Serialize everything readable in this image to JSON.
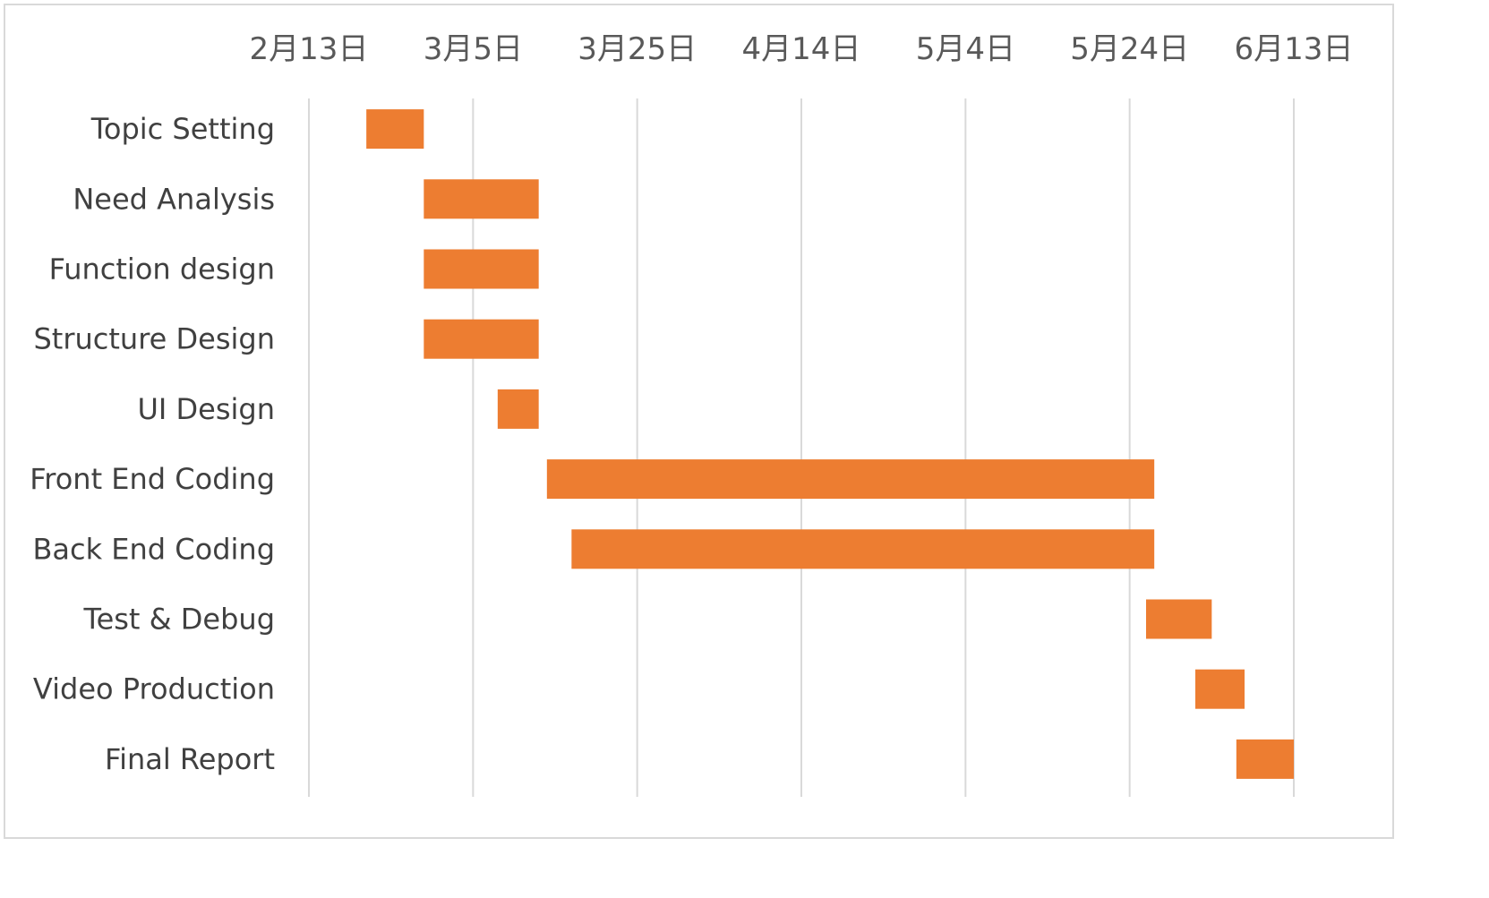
{
  "chart_data": {
    "type": "gantt",
    "title": "",
    "xlabel": "",
    "ylabel": "",
    "year": 2021,
    "x_ticks": [
      {
        "date": "2021-02-13",
        "label": "2月13日"
      },
      {
        "date": "2021-03-05",
        "label": "3月5日"
      },
      {
        "date": "2021-03-25",
        "label": "3月25日"
      },
      {
        "date": "2021-04-14",
        "label": "4月14日"
      },
      {
        "date": "2021-05-04",
        "label": "5月4日"
      },
      {
        "date": "2021-05-24",
        "label": "5月24日"
      },
      {
        "date": "2021-06-13",
        "label": "6月13日"
      }
    ],
    "xlim": [
      "2021-02-13",
      "2021-06-13"
    ],
    "grid": "vertical",
    "tick_position": "top",
    "legend": "none",
    "bar_color": "#ED7D31",
    "tasks": [
      {
        "name": "Topic Setting",
        "start": "2021-02-20",
        "end": "2021-02-27"
      },
      {
        "name": "Need Analysis",
        "start": "2021-02-27",
        "end": "2021-03-13"
      },
      {
        "name": "Function design",
        "start": "2021-02-27",
        "end": "2021-03-13"
      },
      {
        "name": "Structure Design",
        "start": "2021-02-27",
        "end": "2021-03-13"
      },
      {
        "name": "UI Design",
        "start": "2021-03-08",
        "end": "2021-03-13"
      },
      {
        "name": "Front End Coding",
        "start": "2021-03-14",
        "end": "2021-05-27"
      },
      {
        "name": "Back End Coding",
        "start": "2021-03-17",
        "end": "2021-05-27"
      },
      {
        "name": "Test & Debug",
        "start": "2021-05-26",
        "end": "2021-06-03"
      },
      {
        "name": "Video Production",
        "start": "2021-06-01",
        "end": "2021-06-07"
      },
      {
        "name": "Final Report",
        "start": "2021-06-06",
        "end": "2021-06-13"
      }
    ]
  }
}
